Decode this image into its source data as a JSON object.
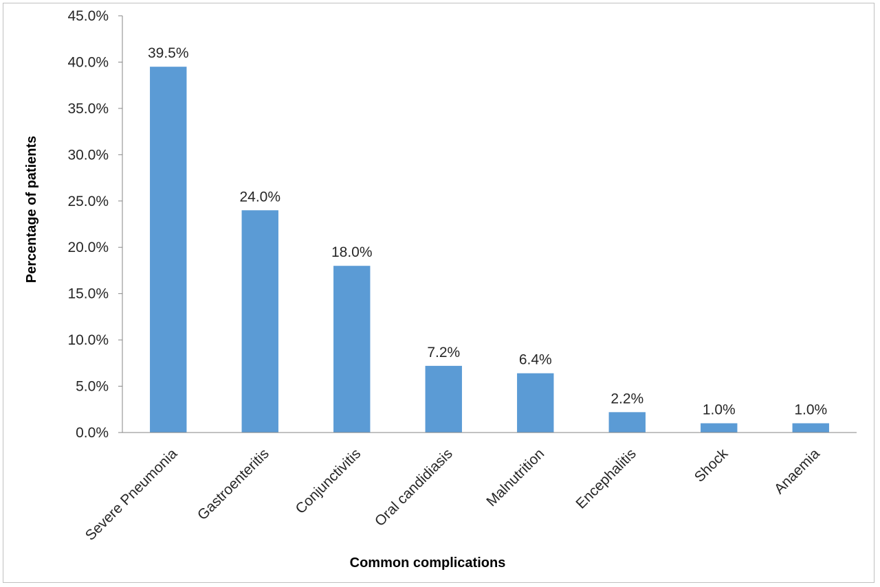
{
  "chart_data": {
    "type": "bar",
    "title": "",
    "xlabel": "Common complications",
    "ylabel": "Percentage of patients",
    "categories": [
      "Severe Pneumonia",
      "Gastroenteritis",
      "Conjunctivitis",
      "Oral candidiasis",
      "Malnutrition",
      "Encephalitis",
      "Shock",
      "Anaemia"
    ],
    "values": [
      39.5,
      24.0,
      18.0,
      7.2,
      6.4,
      2.2,
      1.0,
      1.0
    ],
    "data_labels": [
      "39.5%",
      "24.0%",
      "18.0%",
      "7.2%",
      "6.4%",
      "2.2%",
      "1.0%",
      "1.0%"
    ],
    "ylim": [
      0,
      45
    ],
    "yticks": [
      0,
      5,
      10,
      15,
      20,
      25,
      30,
      35,
      40,
      45
    ],
    "ytick_labels": [
      "0.0%",
      "5.0%",
      "10.0%",
      "15.0%",
      "20.0%",
      "25.0%",
      "30.0%",
      "35.0%",
      "40.0%",
      "45.0%"
    ],
    "bar_color": "#5b9bd5",
    "grid": false,
    "legend": "none"
  }
}
